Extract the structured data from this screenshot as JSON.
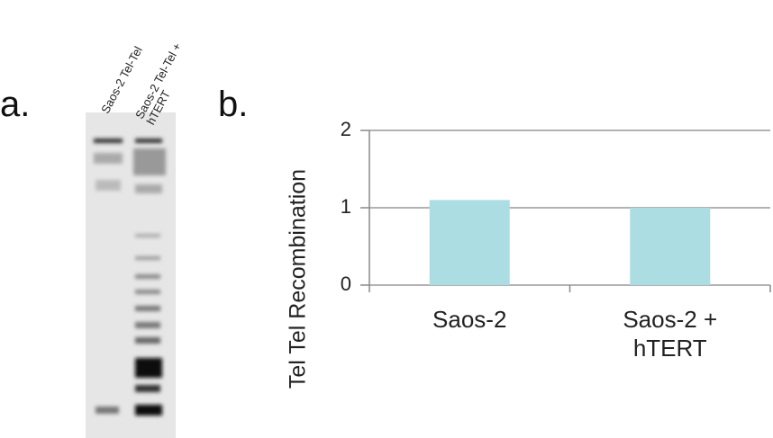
{
  "figure": {
    "panel_a": "a.",
    "panel_b": "b.",
    "lanes": [
      "Saos-2 Tel-Tel",
      "Saos-2 Tel-Tel + hTERT"
    ]
  },
  "chart_data": {
    "type": "bar",
    "y_label": "Tel Tel Recombination",
    "categories": [
      "Saos-2",
      "Saos-2 + hTERT"
    ],
    "values": [
      1.1,
      1.0
    ],
    "color": "#acdde2",
    "ylim": [
      0,
      2
    ],
    "yticks": [
      0,
      1,
      2
    ],
    "grid": true
  }
}
